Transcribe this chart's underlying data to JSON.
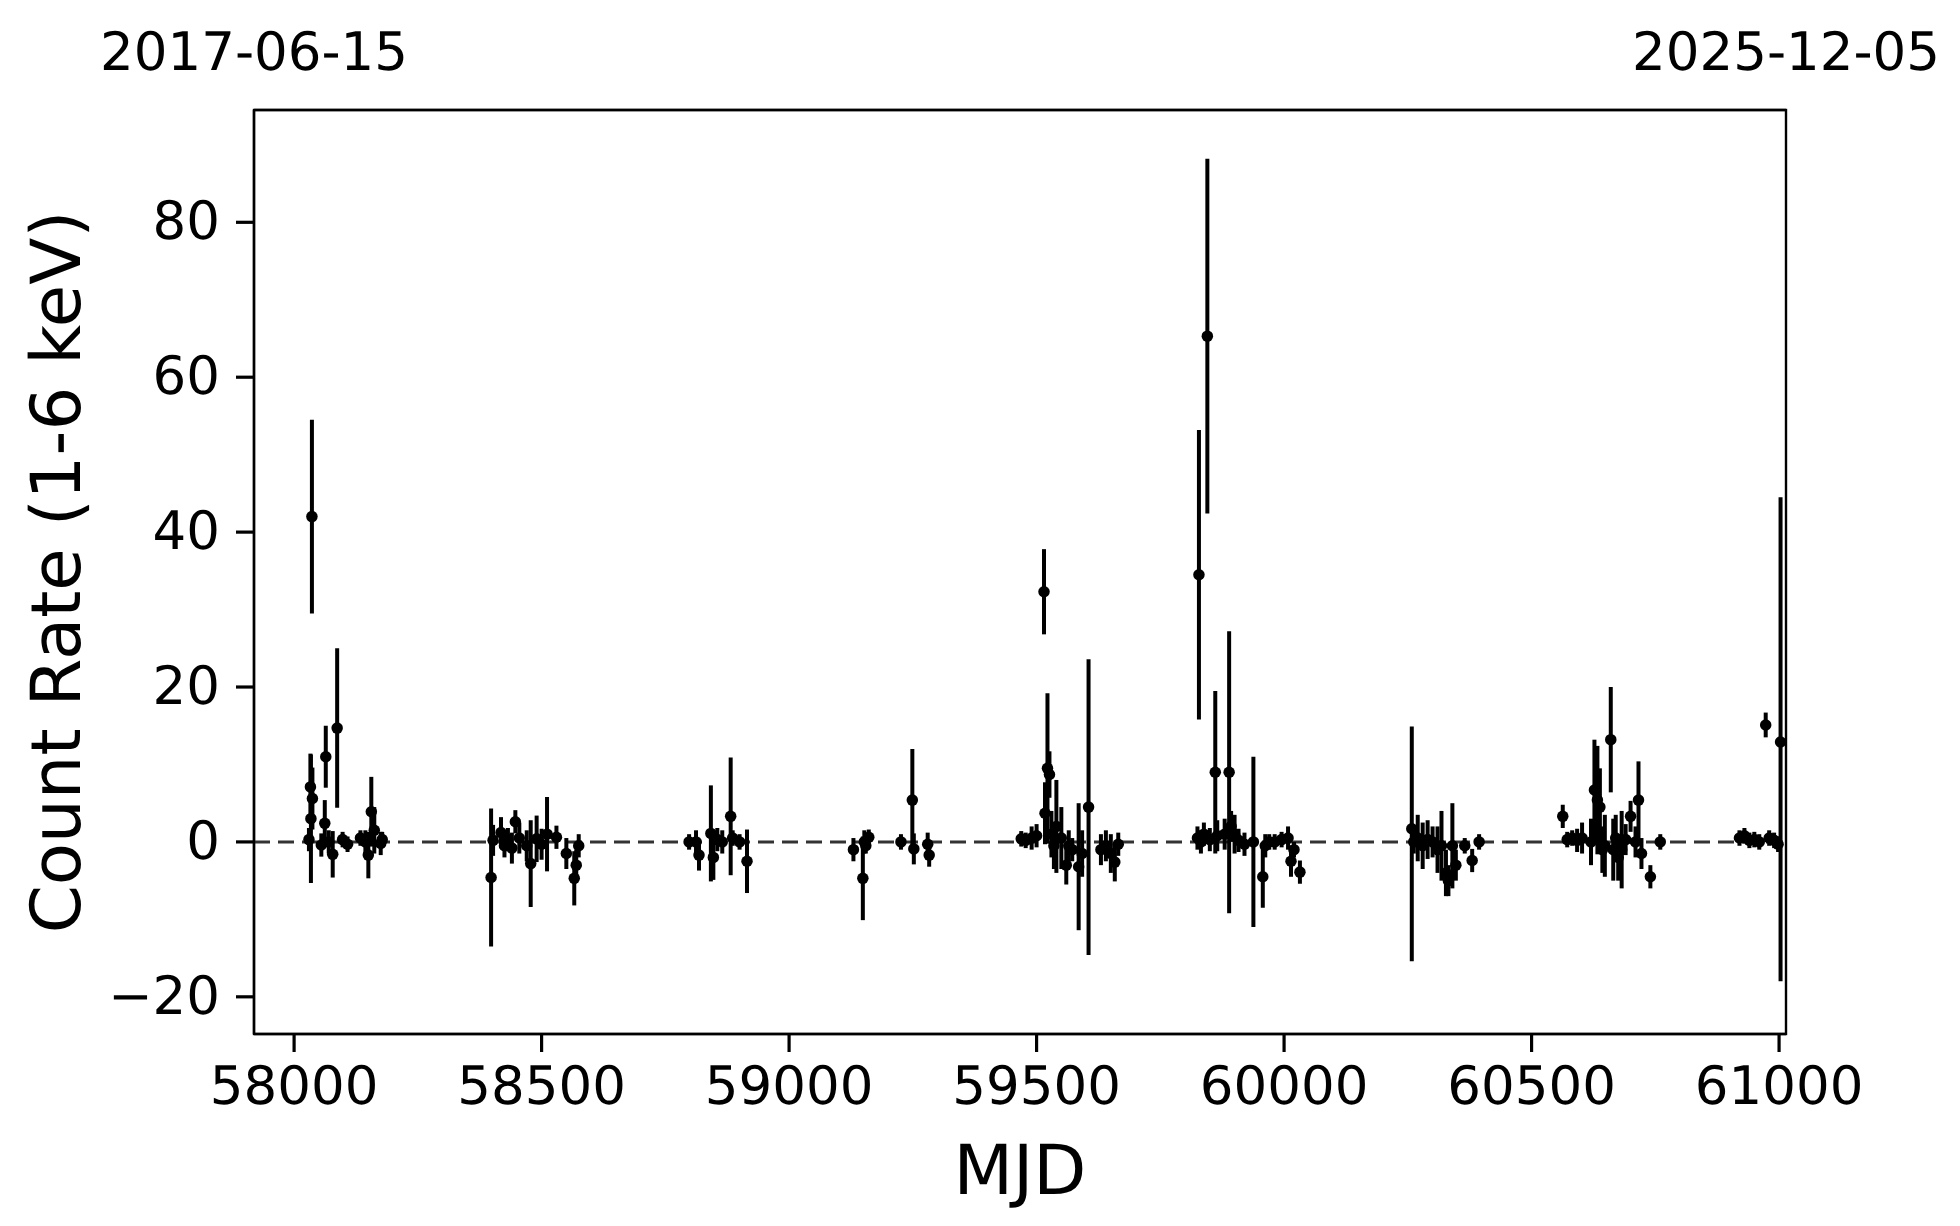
{
  "chart_data": {
    "type": "scatter",
    "xlabel": "MJD",
    "ylabel": "Count Rate (1-6 keV)",
    "color": "#000000",
    "marker": "circle",
    "xlim": [
      57919,
      61014
    ],
    "xticks": [
      58000,
      58500,
      59000,
      59500,
      60000,
      60500,
      61000
    ],
    "ylim": [
      -24.8,
      94.5
    ],
    "yticks": [
      {
        "value": -20,
        "label": "−20"
      },
      0,
      20,
      40,
      60,
      80
    ],
    "x2lim": [
      "2017-06-15",
      "2025-12-05"
    ],
    "x2ticks": [
      "2017-06-15",
      "2025-12-05"
    ],
    "ref_lines": [
      {
        "axis": "y",
        "value": 0,
        "color": "#333333",
        "line_style": "dashed"
      }
    ],
    "x": [
      58030,
      58033,
      58034,
      58036,
      58037,
      58055,
      58062,
      58064,
      58070,
      58078,
      58087,
      58098,
      58108,
      58134,
      58144,
      58150,
      58156,
      58162,
      58175,
      58178,
      58398,
      58402,
      58418,
      58425,
      58432,
      58440,
      58447,
      58455,
      58470,
      58478,
      58490,
      58500,
      58511,
      58530,
      58550,
      58566,
      58570,
      58575,
      58798,
      58812,
      58818,
      58842,
      58847,
      58855,
      58865,
      58882,
      58886,
      58900,
      58915,
      59130,
      59149,
      59152,
      59155,
      59161,
      59226,
      59249,
      59252,
      59280,
      59283,
      59469,
      59478,
      59490,
      59500,
      59515,
      59517,
      59522,
      59526,
      59530,
      59535,
      59540,
      59550,
      59560,
      59565,
      59572,
      59585,
      59592,
      59605,
      59630,
      59640,
      59650,
      59658,
      59665,
      59825,
      59828,
      59832,
      59838,
      59845,
      59850,
      59861,
      59865,
      59880,
      59889,
      59893,
      59900,
      59908,
      59920,
      59938,
      59957,
      59962,
      59970,
      59981,
      59995,
      60008,
      60014,
      60020,
      60032,
      60258,
      60262,
      60270,
      60280,
      60290,
      60300,
      60310,
      60318,
      60327,
      60332,
      60340,
      60347,
      60365,
      60380,
      60394,
      60563,
      60572,
      60582,
      60592,
      60602,
      60620,
      60627,
      60633,
      60638,
      60643,
      60648,
      60660,
      60665,
      60670,
      60675,
      60682,
      60690,
      60700,
      60710,
      60716,
      60722,
      60740,
      60760,
      60920,
      60930,
      60940,
      60950,
      60960,
      60973,
      60980,
      60990,
      60998,
      61003
    ],
    "values": [
      0.3,
      7.1,
      3.0,
      42.0,
      5.6,
      -0.4,
      2.4,
      11.0,
      0.0,
      -1.6,
      14.7,
      0.3,
      -0.3,
      0.5,
      0.0,
      -1.7,
      3.9,
      1.5,
      -0.2,
      0.3,
      -4.6,
      0.2,
      1.2,
      -0.5,
      0.3,
      -0.8,
      2.6,
      0.5,
      -0.5,
      -2.8,
      0.4,
      -0.3,
      1.0,
      0.6,
      -1.5,
      -4.7,
      -3.0,
      -0.5,
      0.0,
      0.0,
      -1.7,
      1.1,
      -2.0,
      0.3,
      0.0,
      3.3,
      0.5,
      0.0,
      -2.5,
      -1.0,
      -4.7,
      0.0,
      -0.5,
      0.6,
      0.0,
      5.4,
      -0.9,
      -0.3,
      -1.7,
      0.4,
      0.2,
      0.5,
      0.8,
      32.3,
      3.7,
      9.5,
      8.7,
      1.0,
      -0.5,
      2.0,
      0.5,
      -3.0,
      -0.5,
      -1.0,
      -3.2,
      -1.5,
      4.5,
      -1.0,
      -0.5,
      -1.5,
      -2.6,
      -0.3,
      0.5,
      34.5,
      0.0,
      1.0,
      65.3,
      0.3,
      9.0,
      0.8,
      1.0,
      9.0,
      2.0,
      1.0,
      0.2,
      -0.3,
      0.0,
      -4.5,
      -0.5,
      0.0,
      0.0,
      0.3,
      0.5,
      -2.5,
      -1.0,
      -3.9,
      1.7,
      0.0,
      0.5,
      -0.5,
      0.3,
      0.0,
      -1.0,
      -0.5,
      -4.0,
      -5.0,
      -0.5,
      -3.0,
      -0.5,
      -2.4,
      0.0,
      3.3,
      0.3,
      0.5,
      0.2,
      0.5,
      0.0,
      6.7,
      5.4,
      4.5,
      -1.0,
      -0.5,
      13.2,
      -1.0,
      0.5,
      -2.0,
      -1.0,
      0.3,
      3.3,
      0.0,
      5.4,
      -1.5,
      -4.5,
      0.0,
      0.5,
      0.8,
      0.2,
      0.3,
      0.0,
      15.1,
      0.5,
      0.2,
      -0.3,
      12.9
    ],
    "errors": [
      1.5,
      4.3,
      8.3,
      12.5,
      4,
      1.5,
      3,
      4,
      1.5,
      3,
      10.3,
      1,
      1,
      1,
      1.5,
      3,
      4.5,
      3,
      1.5,
      1,
      8.9,
      2,
      2,
      1.5,
      1.5,
      2,
      1.5,
      2,
      2,
      5.6,
      3,
      2,
      4.8,
      1.5,
      2,
      3.5,
      2,
      1.5,
      1,
      1.5,
      2,
      6.2,
      2.9,
      1.5,
      1.5,
      7.6,
      1,
      1,
      4.1,
      1.5,
      5.4,
      1.5,
      1,
      1,
      1,
      6.6,
      2,
      1.5,
      1.5,
      1,
      1,
      1.5,
      1.5,
      5.5,
      4,
      9.7,
      3,
      3,
      3,
      6,
      4,
      2.5,
      2,
      1.5,
      8.2,
      3,
      19.1,
      2,
      2,
      2.5,
      2.5,
      1.5,
      1.5,
      18.7,
      1.5,
      1.5,
      22.9,
      1.5,
      10.5,
      2,
      2,
      18.2,
      2,
      2.5,
      1.5,
      1.5,
      11.0,
      4,
      1.5,
      1,
      1,
      1,
      1.5,
      2,
      1,
      1.5,
      [
        -15.4,
        14.9
      ],
      1.5,
      3,
      3,
      2.5,
      2,
      3,
      4.5,
      3,
      2,
      5.5,
      2,
      1,
      1.5,
      1,
      1.5,
      1,
      1,
      1.5,
      2,
      3,
      6.5,
      7,
      5,
      3,
      4,
      6.8,
      4,
      3,
      3,
      5,
      2,
      2,
      2,
      5,
      2,
      1.5,
      1,
      1,
      1,
      1,
      1,
      1,
      1.6,
      1,
      1,
      1,
      [
        -18.0,
        44.5
      ]
    ]
  }
}
